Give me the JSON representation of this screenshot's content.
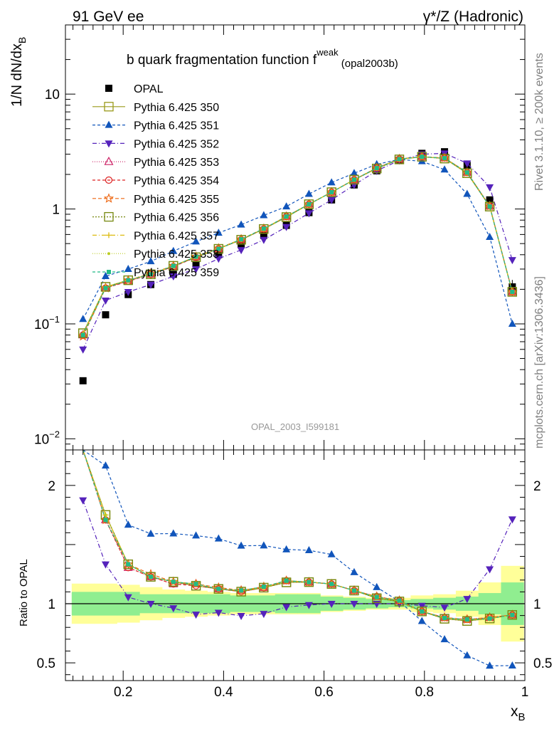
{
  "header": {
    "left": "91 GeV ee",
    "right": "γ*/Z (Hadronic)"
  },
  "title": {
    "main": "b quark fragmentation function f",
    "sup": "weak",
    "sub": " (opal2003b)"
  },
  "side_labels": {
    "rivet": "Rivet 3.1.10, ≥ 200k events",
    "source": "mcplots.cern.ch [arXiv:1306.3436]"
  },
  "analysis_id": "OPAL_2003_I599181",
  "axes": {
    "main_ylabel": "1/N dN/dx",
    "main_ylabel_sub": "B",
    "ratio_ylabel": "Ratio to OPAL",
    "xlabel": "x",
    "xlabel_sub": "B",
    "main_yticks": [
      {
        "v": 0.01,
        "base": "10",
        "exp": "−2"
      },
      {
        "v": 0.1,
        "base": "10",
        "exp": "−1"
      },
      {
        "v": 1,
        "base": "1",
        "exp": ""
      },
      {
        "v": 10,
        "base": "10",
        "exp": ""
      }
    ],
    "ratio_yticks": [
      "0.5",
      "1",
      "2"
    ],
    "xticks": [
      "0.2",
      "0.4",
      "0.6",
      "0.8",
      "1"
    ]
  },
  "chart_data": {
    "type": "scatter",
    "x": [
      0.12,
      0.165,
      0.21,
      0.255,
      0.3,
      0.345,
      0.39,
      0.435,
      0.48,
      0.525,
      0.57,
      0.615,
      0.66,
      0.705,
      0.75,
      0.795,
      0.84,
      0.885,
      0.93,
      0.975
    ],
    "xlim": [
      0.085,
      1.0
    ],
    "ylim_main": [
      0.008,
      40
    ],
    "yscale_main": "log",
    "ylim_ratio": [
      0.35,
      2.3
    ],
    "legend_position": "top-left",
    "grid": false,
    "series": [
      {
        "name": "OPAL",
        "color": "#000000",
        "dash": "",
        "marker": "square-filled",
        "line": false,
        "values": [
          0.032,
          0.12,
          0.18,
          0.22,
          0.27,
          0.33,
          0.4,
          0.49,
          0.59,
          0.72,
          0.93,
          1.2,
          1.62,
          2.15,
          2.65,
          3.05,
          3.15,
          2.4,
          1.2,
          0.21
        ]
      },
      {
        "name": "Pythia 6.425 350",
        "color": "#9a9a1a",
        "dash": "",
        "marker": "square-open",
        "line": true,
        "values": [
          0.083,
          0.21,
          0.24,
          0.27,
          0.32,
          0.38,
          0.45,
          0.54,
          0.67,
          0.85,
          1.1,
          1.4,
          1.8,
          2.25,
          2.7,
          2.85,
          2.75,
          2.05,
          1.05,
          0.19
        ]
      },
      {
        "name": "Pythia 6.425 351",
        "color": "#1155bb",
        "dash": "4 3",
        "marker": "triangle-up",
        "line": true,
        "values": [
          0.11,
          0.26,
          0.3,
          0.35,
          0.43,
          0.52,
          0.62,
          0.73,
          0.88,
          1.05,
          1.35,
          1.7,
          2.05,
          2.45,
          2.7,
          2.6,
          2.2,
          1.35,
          0.57,
          0.1
        ]
      },
      {
        "name": "Pythia 6.425 352",
        "color": "#5522bb",
        "dash": "6 3 1 3",
        "marker": "triangle-down",
        "line": true,
        "values": [
          0.06,
          0.16,
          0.19,
          0.22,
          0.26,
          0.3,
          0.37,
          0.44,
          0.54,
          0.7,
          0.92,
          1.2,
          1.62,
          2.15,
          2.65,
          3.0,
          3.05,
          2.5,
          1.55,
          0.36
        ]
      },
      {
        "name": "Pythia 6.425 353",
        "color": "#cc2266",
        "dash": "1 2",
        "marker": "triangle-open",
        "line": true,
        "values": [
          0.08,
          0.205,
          0.235,
          0.27,
          0.315,
          0.385,
          0.45,
          0.545,
          0.67,
          0.86,
          1.1,
          1.4,
          1.8,
          2.28,
          2.72,
          2.85,
          2.78,
          2.08,
          1.06,
          0.19
        ]
      },
      {
        "name": "Pythia 6.425 354",
        "color": "#dd2222",
        "dash": "4 3",
        "marker": "circle-open",
        "line": true,
        "values": [
          0.08,
          0.205,
          0.235,
          0.27,
          0.315,
          0.38,
          0.45,
          0.54,
          0.67,
          0.86,
          1.1,
          1.4,
          1.8,
          2.28,
          2.72,
          2.85,
          2.78,
          2.08,
          1.06,
          0.19
        ]
      },
      {
        "name": "Pythia 6.425 355",
        "color": "#ee6611",
        "dash": "5 3",
        "marker": "star-open",
        "line": true,
        "values": [
          0.078,
          0.205,
          0.24,
          0.275,
          0.32,
          0.385,
          0.455,
          0.545,
          0.675,
          0.86,
          1.1,
          1.4,
          1.8,
          2.28,
          2.72,
          2.85,
          2.78,
          2.08,
          1.06,
          0.19
        ]
      },
      {
        "name": "Pythia 6.425 356",
        "color": "#778811",
        "dash": "2 2",
        "marker": "square-open",
        "line": true,
        "values": [
          0.083,
          0.21,
          0.24,
          0.27,
          0.32,
          0.38,
          0.45,
          0.54,
          0.67,
          0.85,
          1.1,
          1.4,
          1.8,
          2.25,
          2.7,
          2.85,
          2.75,
          2.05,
          1.05,
          0.19
        ]
      },
      {
        "name": "Pythia 6.425 357",
        "color": "#ddbb11",
        "dash": "6 3 1 3",
        "marker": "plus",
        "line": true,
        "values": [
          0.082,
          0.21,
          0.24,
          0.27,
          0.32,
          0.385,
          0.45,
          0.545,
          0.67,
          0.86,
          1.1,
          1.4,
          1.8,
          2.27,
          2.71,
          2.85,
          2.77,
          2.07,
          1.05,
          0.19
        ]
      },
      {
        "name": "Pythia 6.425 358",
        "color": "#bbcc22",
        "dash": "1 2",
        "marker": "dot",
        "line": true,
        "values": [
          0.082,
          0.21,
          0.24,
          0.27,
          0.32,
          0.385,
          0.45,
          0.545,
          0.67,
          0.86,
          1.1,
          1.4,
          1.8,
          2.27,
          2.71,
          2.85,
          2.77,
          2.07,
          1.05,
          0.19
        ]
      },
      {
        "name": "Pythia 6.425 359",
        "color": "#22bb88",
        "dash": "4 3",
        "marker": "square-filled-small",
        "line": true,
        "values": [
          0.08,
          0.205,
          0.24,
          0.27,
          0.32,
          0.385,
          0.45,
          0.545,
          0.675,
          0.86,
          1.1,
          1.4,
          1.8,
          2.27,
          2.72,
          2.85,
          2.77,
          2.08,
          1.05,
          0.19
        ]
      }
    ],
    "opal_errors_rel": [
      0.05,
      0.04,
      0.04,
      0.04,
      0.04,
      0.04,
      0.04,
      0.04,
      0.04,
      0.03,
      0.03,
      0.03,
      0.03,
      0.03,
      0.03,
      0.03,
      0.03,
      0.03,
      0.04,
      0.15
    ],
    "ratio_band": {
      "stat": [
        0.1,
        0.1,
        0.1,
        0.08,
        0.08,
        0.08,
        0.08,
        0.07,
        0.07,
        0.08,
        0.08,
        0.06,
        0.05,
        0.04,
        0.03,
        0.04,
        0.05,
        0.06,
        0.09,
        0.18
      ],
      "total": [
        0.17,
        0.17,
        0.16,
        0.14,
        0.12,
        0.11,
        0.1,
        0.09,
        0.09,
        0.09,
        0.09,
        0.07,
        0.06,
        0.05,
        0.05,
        0.07,
        0.08,
        0.11,
        0.18,
        0.32
      ],
      "stat_color": "#90ee90",
      "total_color": "#ffff99"
    }
  }
}
